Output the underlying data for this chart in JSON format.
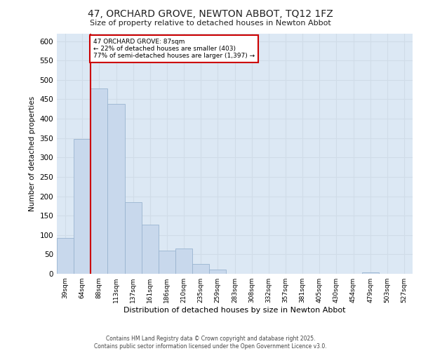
{
  "title_line1": "47, ORCHARD GROVE, NEWTON ABBOT, TQ12 1FZ",
  "title_line2": "Size of property relative to detached houses in Newton Abbot",
  "xlabel": "Distribution of detached houses by size in Newton Abbot",
  "ylabel": "Number of detached properties",
  "categories": [
    "39sqm",
    "64sqm",
    "88sqm",
    "113sqm",
    "137sqm",
    "161sqm",
    "186sqm",
    "210sqm",
    "235sqm",
    "259sqm",
    "283sqm",
    "308sqm",
    "332sqm",
    "357sqm",
    "381sqm",
    "405sqm",
    "430sqm",
    "454sqm",
    "479sqm",
    "503sqm",
    "527sqm"
  ],
  "values": [
    93,
    348,
    478,
    438,
    185,
    127,
    59,
    66,
    25,
    10,
    0,
    0,
    0,
    0,
    0,
    0,
    0,
    0,
    3,
    0,
    0
  ],
  "bar_color": "#c8d8ec",
  "bar_edge_color": "#9ab4d0",
  "grid_color": "#d0dce8",
  "background_color": "#dce8f4",
  "fig_background": "#ffffff",
  "vline_color": "#cc0000",
  "vline_x_index": 2,
  "annotation_text": "47 ORCHARD GROVE: 87sqm\n← 22% of detached houses are smaller (403)\n77% of semi-detached houses are larger (1,397) →",
  "annotation_box_facecolor": "#ffffff",
  "annotation_box_edgecolor": "#cc0000",
  "footer_text": "Contains HM Land Registry data © Crown copyright and database right 2025.\nContains public sector information licensed under the Open Government Licence v3.0.",
  "ylim": [
    0,
    620
  ],
  "yticks": [
    0,
    50,
    100,
    150,
    200,
    250,
    300,
    350,
    400,
    450,
    500,
    550,
    600
  ]
}
